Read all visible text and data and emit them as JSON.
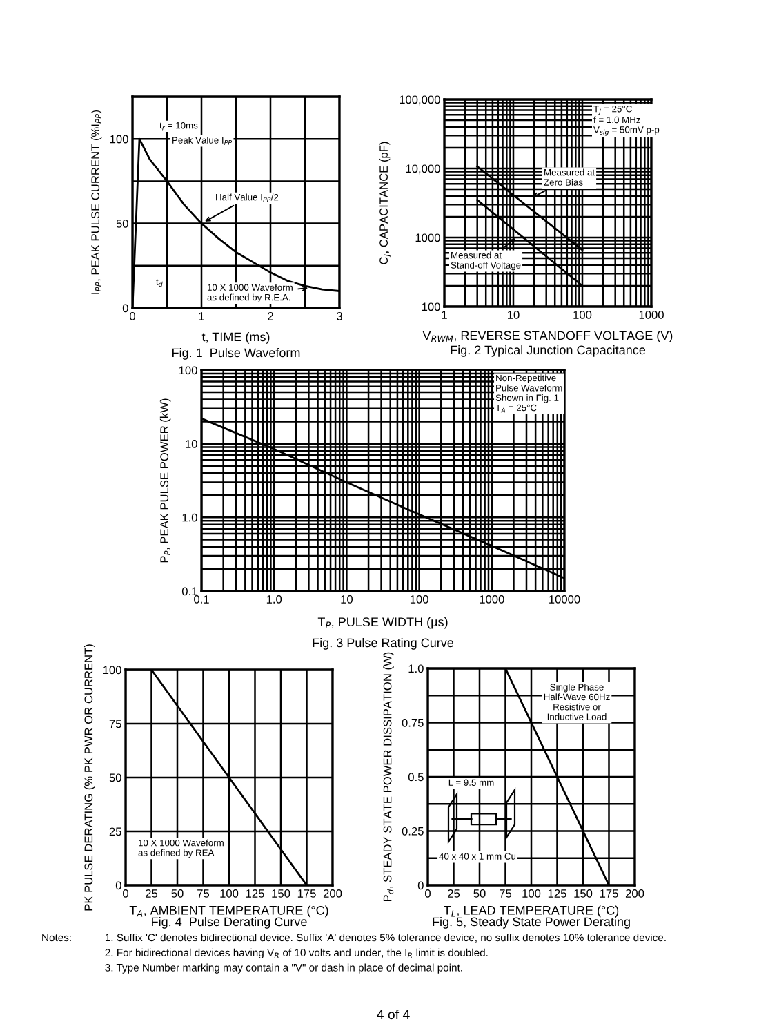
{
  "chart_data": [
    {
      "type": "line",
      "title": "Fig. 1  Pulse Waveform",
      "xlabel": "t, TIME (ms)",
      "ylabel": "I$_{PP}$, PEAK PULSE CURRENT (%I$_{PP}$)",
      "x": [
        0,
        0.1,
        0.25,
        0.5,
        0.75,
        1,
        1.25,
        1.5,
        1.75,
        2,
        2.25,
        2.5,
        2.75,
        3
      ],
      "series": [
        {
          "color": "#000000",
          "values": [
            0,
            100,
            88,
            75,
            61,
            50,
            41,
            33,
            27,
            21,
            16,
            13,
            11,
            10
          ]
        }
      ],
      "xlim": [
        0,
        3
      ],
      "ylim": [
        0,
        125
      ],
      "xticks": [
        0,
        {
          "value": 0.5,
          "label": null
        },
        1,
        {
          "value": 1.5,
          "label": null
        },
        2,
        {
          "value": 2.5,
          "label": null
        },
        3
      ],
      "yticks": [
        0,
        {
          "value": 25,
          "label": null
        },
        50,
        {
          "value": 75,
          "label": null
        },
        100,
        {
          "value": 125,
          "label": null
        }
      ],
      "grid": true,
      "marker": "none",
      "line_style": "solid",
      "annotations": [
        "t$_{r}$ = 10ms",
        "Peak Value I$_{PP}$",
        {
          "text": "Half Value I$_{PP}$/2",
          "x": 1,
          "y": 50
        },
        "t$_{d}$",
        {
          "text": "10 X 1000 Waveform\nas defined by R.E.A.",
          "x": 2.6,
          "y": 12
        }
      ]
    },
    {
      "type": "line",
      "title": "Fig. 2 Typical Junction Capacitance",
      "xlabel": "V$_{RWM}$, REVERSE STANDOFF VOLTAGE (V)",
      "ylabel": "C$_{J}$, CAPACITANCE (pF)",
      "log": "xy",
      "xlim": [
        1,
        1000
      ],
      "ylim": [
        100,
        100000
      ],
      "xticks": [
        1,
        10,
        100,
        1000
      ],
      "yticks": [
        100,
        1000,
        {
          "value": 10000,
          "label": "10,000"
        },
        {
          "value": 100000,
          "label": "100,000"
        }
      ],
      "grid": true,
      "marker": "none",
      "line_style": "solid",
      "x": [
        3,
        100
      ],
      "series": [
        {
          "color": "#000000",
          "values": [
            10700,
            660
          ]
        },
        {
          "color": "#000000",
          "values": [
            3500,
            200
          ]
        }
      ],
      "annotations": [
        "T$_{J}$ = 25°C\nf = 1.0 MHz\nV$_{sig}$ = 50mV p-p",
        {
          "text": "Measured at\nZero Bias",
          "x": 17,
          "y": 3600
        },
        {
          "text": "Measured at\nStand-off Voltage",
          "x": 12,
          "y": 1050
        }
      ]
    },
    {
      "type": "line",
      "title": "Fig. 3 Pulse Rating Curve",
      "xlabel": "T$_{P}$, PULSE WIDTH (µs)",
      "ylabel": "P$_{P}$, PEAK PULSE POWER (kW)",
      "log": "xy",
      "xlim": [
        0.1,
        10000
      ],
      "ylim": [
        0.1,
        100
      ],
      "xticks": [
        0.1,
        {
          "value": 1,
          "label": "1.0"
        },
        10,
        100,
        1000,
        10000
      ],
      "yticks": [
        0.1,
        {
          "value": 1,
          "label": "1.0"
        },
        10,
        100
      ],
      "grid": true,
      "marker": "none",
      "line_style": "solid",
      "x": [
        0.1,
        1,
        10,
        100,
        1000,
        10000
      ],
      "series": [
        {
          "color": "#000000",
          "values": [
            22,
            8.5,
            3.0,
            1.1,
            0.41,
            0.15
          ]
        }
      ],
      "annotations": [
        "Non-Repetitive\nPulse Waveform\nShown in Fig. 1\nT$_{A}$ = 25°C"
      ]
    },
    {
      "type": "line",
      "title": "Fig. 4  Pulse Derating Curve",
      "xlabel": "T$_{A}$, AMBIENT TEMPERATURE (°C)",
      "ylabel": "PK PULSE DERATING (% PK PWR OR CURRENT)",
      "xlim": [
        0,
        200
      ],
      "ylim": [
        0,
        100
      ],
      "xticks": [
        0,
        25,
        50,
        75,
        100,
        125,
        150,
        175,
        200
      ],
      "yticks": [
        0,
        25,
        50,
        75,
        100
      ],
      "grid": true,
      "marker": "none",
      "line_style": "solid",
      "x": [
        0,
        25,
        175
      ],
      "series": [
        {
          "color": "#000000",
          "values": [
            100,
            100,
            0
          ]
        }
      ],
      "annotations": [
        "10 X 1000 Waveform\nas defined by REA"
      ]
    },
    {
      "type": "line",
      "title": "Fig. 5, Steady State Power Derating",
      "xlabel": "T$_{L}$, LEAD TEMPERATURE (°C)",
      "ylabel": "P$_{d}$, STEADY STATE POWER DISSIPATION (W)",
      "xlim": [
        0,
        200
      ],
      "ylim": [
        0,
        1.0
      ],
      "xticks": [
        0,
        25,
        50,
        75,
        100,
        125,
        150,
        175,
        200
      ],
      "yticks": [
        0,
        {
          "value": 0.125,
          "label": null
        },
        0.25,
        {
          "value": 0.375,
          "label": null
        },
        0.5,
        {
          "value": 0.625,
          "label": null
        },
        0.75,
        {
          "value": 0.875,
          "label": null
        },
        {
          "value": 1.0,
          "label": "1.0"
        }
      ],
      "grid": true,
      "marker": "none",
      "line_style": "solid",
      "x": [
        75,
        175
      ],
      "series": [
        {
          "color": "#000000",
          "values": [
            1.0,
            0
          ]
        }
      ],
      "annotations": [
        "Single Phase\nHalf-Wave 60Hz\nResistive or\nInductive Load",
        "L = 9.5 mm",
        "40 x 40 x 1 mm Cu"
      ]
    },
    {
      "type": "other",
      "annotations": [
        "Notes:",
        "1. Suffix 'C' denotes bidirectional device. Suffix 'A' denotes 5% tolerance device, no suffix denotes 10% tolerance device.",
        "2. For bidirectional devices having V$_{R}$ of 10 volts and under, the I$_{R}$ limit is doubled.",
        "3. Type Number marking may contain a \"V\" or dash in place of decimal point.",
        "4 of 4"
      ]
    }
  ]
}
